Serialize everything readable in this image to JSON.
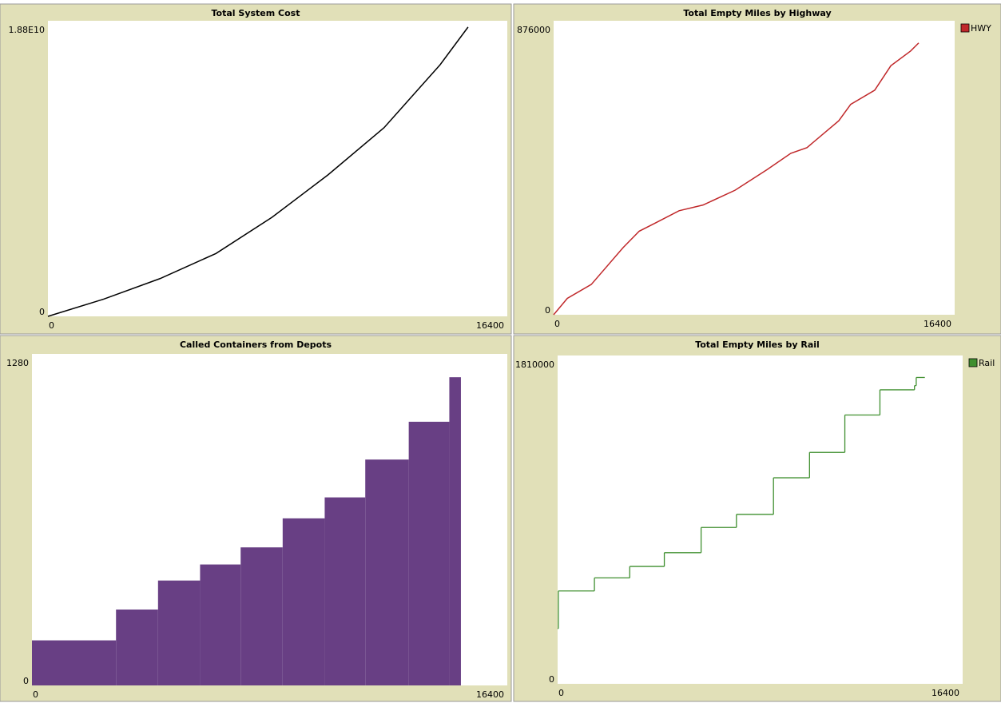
{
  "chart_data": [
    {
      "type": "line",
      "title": "Total System Cost",
      "color": "#000000",
      "x": [
        0,
        2000,
        4000,
        6000,
        8000,
        10000,
        12000,
        14000,
        15000
      ],
      "values": [
        0,
        1100000000,
        2400000000,
        4000000000,
        6300000000,
        9000000000,
        12000000000,
        16000000000,
        18400000000
      ],
      "xlim": [
        0,
        16400
      ],
      "xticks": [
        0,
        16400
      ],
      "ylim": [
        0,
        18800000000
      ],
      "yticks": [
        0,
        {
          "value": 18800000000,
          "label": "1.88E10"
        }
      ]
    },
    {
      "type": "line",
      "title": "Total Empty Miles by Highway",
      "x": [
        0,
        560,
        1540,
        2840,
        3500,
        4150,
        5130,
        6110,
        7420,
        8720,
        9700,
        10360,
        11660,
        12150,
        13130,
        13790,
        14600,
        14930
      ],
      "series": [
        {
          "name": "HWY",
          "color": "#c0282a",
          "values": [
            0,
            48800,
            90300,
            200000,
            249000,
            273000,
            310000,
            327000,
            371000,
            432000,
            481000,
            498000,
            578000,
            627000,
            669000,
            742000,
            786000,
            810000
          ]
        }
      ],
      "xlim": [
        0,
        16400
      ],
      "xticks": [
        0,
        16400
      ],
      "ylim": [
        0,
        876000
      ],
      "yticks": [
        0,
        876000
      ],
      "legend": "right"
    },
    {
      "type": "histogram",
      "title": "Called Containers from Depots",
      "color": "#683f84",
      "bins": [
        0,
        2900,
        4350,
        5800,
        7200,
        8650,
        10100,
        11500,
        13000,
        14400,
        14800
      ],
      "values": [
        174,
        293,
        405,
        467,
        533,
        645,
        726,
        872,
        1018,
        1190
      ],
      "xlim": [
        0,
        16400
      ],
      "xticks": [
        0,
        16400
      ],
      "ylim": [
        0,
        1280
      ],
      "yticks": [
        0,
        1280
      ]
    },
    {
      "type": "step",
      "title": "Total Empty Miles by Rail",
      "x": [
        0,
        30,
        1490,
        2920,
        4320,
        5810,
        7240,
        8740,
        10200,
        11630,
        13050,
        14450,
        14520,
        14870
      ],
      "series": [
        {
          "name": "Rail",
          "color": "#3f8f2f",
          "values": [
            305000,
            512000,
            584000,
            647000,
            723000,
            862000,
            934000,
            1136000,
            1276000,
            1482000,
            1621000,
            1644000,
            1689000,
            1689000
          ]
        }
      ],
      "xlim": [
        0,
        16400
      ],
      "xticks": [
        0,
        16400
      ],
      "ylim": [
        0,
        1810000
      ],
      "yticks": [
        0,
        1810000
      ],
      "legend": "right"
    }
  ]
}
